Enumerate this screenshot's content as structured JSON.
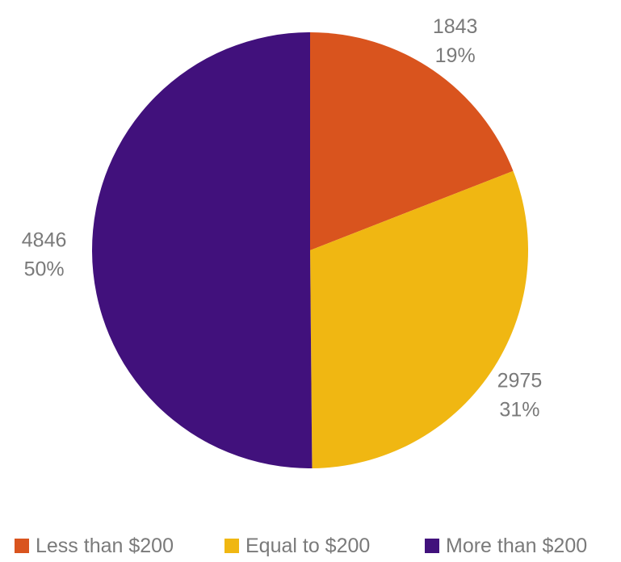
{
  "chart_data": {
    "type": "pie",
    "title": "",
    "legend_position": "bottom",
    "slices": [
      {
        "label": "Less than $200",
        "value": 1843,
        "percent": "19%",
        "color": "#d9541e"
      },
      {
        "label": "Equal to $200",
        "value": 2975,
        "percent": "31%",
        "color": "#f0b712"
      },
      {
        "label": "More than $200",
        "value": 4846,
        "percent": "50%",
        "color": "#41117c"
      }
    ]
  }
}
